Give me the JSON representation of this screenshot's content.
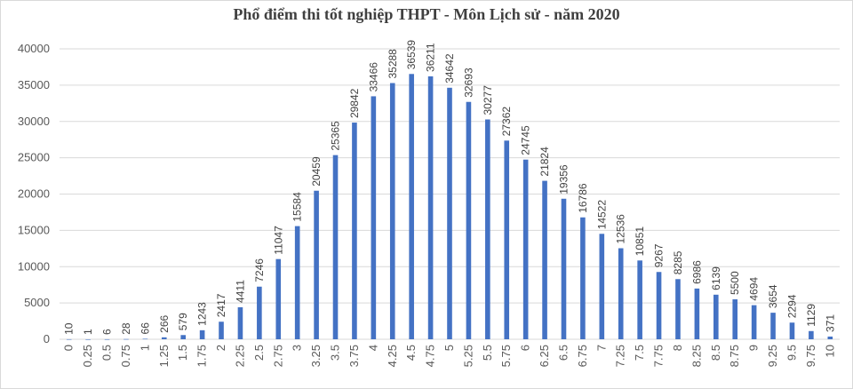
{
  "chart_data": {
    "type": "bar",
    "title": "Phổ điểm thi tốt nghiệp THPT - Môn Lịch sử - năm 2020",
    "xlabel": "",
    "ylabel": "",
    "ylim": [
      0,
      40000
    ],
    "yticks": [
      "0",
      "5000",
      "10000",
      "15000",
      "20000",
      "25000",
      "30000",
      "35000",
      "40000"
    ],
    "grid": true,
    "legend": "none",
    "bar_color": "#4472C4",
    "categories": [
      "0",
      "0.25",
      "0.5",
      "0.75",
      "1",
      "1.25",
      "1.5",
      "1.75",
      "2",
      "2.25",
      "2.5",
      "2.75",
      "3",
      "3.25",
      "3.5",
      "3.75",
      "4",
      "4.25",
      "4.5",
      "4.75",
      "5",
      "5.25",
      "5.5",
      "5.75",
      "6",
      "6.25",
      "6.5",
      "6.75",
      "7",
      "7.25",
      "7.5",
      "7.75",
      "8",
      "8.25",
      "8.5",
      "8.75",
      "9",
      "9.25",
      "9.5",
      "9.75",
      "10"
    ],
    "values": [
      10,
      1,
      6,
      28,
      66,
      266,
      579,
      1243,
      2417,
      4411,
      7246,
      11047,
      15584,
      20459,
      25365,
      29842,
      33466,
      35288,
      36539,
      36211,
      34642,
      32693,
      30277,
      27362,
      24745,
      21824,
      19356,
      16786,
      14522,
      12536,
      10851,
      9267,
      8285,
      6986,
      6139,
      5500,
      4694,
      3654,
      2294,
      1129,
      371
    ]
  }
}
